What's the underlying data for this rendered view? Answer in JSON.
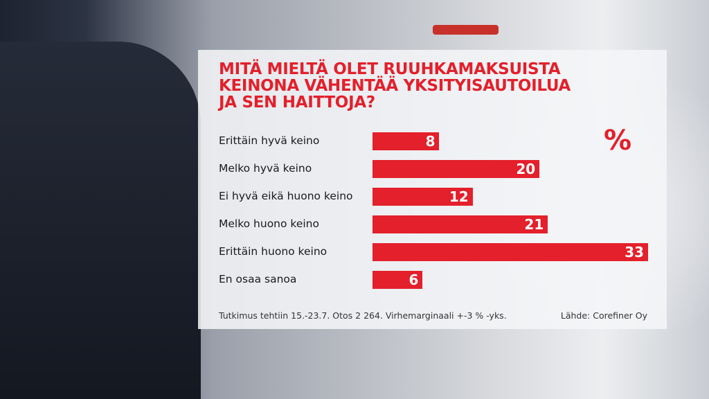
{
  "chart_data": {
    "type": "bar",
    "orientation": "horizontal",
    "title": "MITÄ MIELTÄ OLET RUUHKAMAKSUISTA KEINONA VÄHENTÄÄ YKSITYISAUTOILUA JA SEN HAITTOJA?",
    "title_lines": [
      "MITÄ MIELTÄ OLET RUUHKAMAKSUISTA",
      "KEINONA VÄHENTÄÄ YKSITYISAUTOILUA",
      "JA SEN HAITTOJA?"
    ],
    "unit": "%",
    "categories": [
      "Erittäin hyvä keino",
      "Melko hyvä keino",
      "Ei hyvä eikä huono keino",
      "Melko huono keino",
      "Erittäin huono keino",
      "En osaa sanoa"
    ],
    "values": [
      8,
      20,
      12,
      21,
      33,
      6
    ],
    "bar_color": "#e3202b",
    "grid": false
  },
  "footer": {
    "note": "Tutkimus tehtiin 15.-23.7. Otos 2 264. Virhemarginaali +-3 % -yks.",
    "source": "Lähde: Corefiner Oy"
  }
}
